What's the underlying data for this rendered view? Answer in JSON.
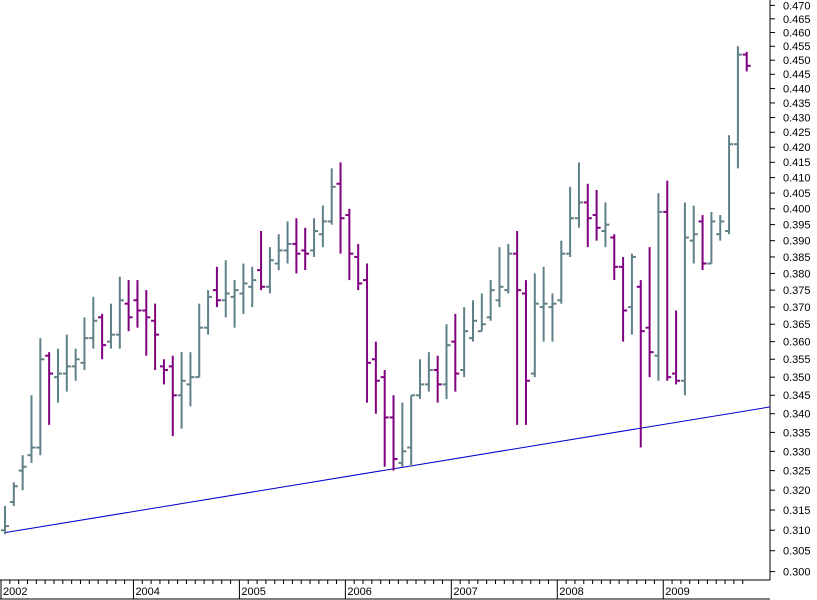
{
  "chart_data": {
    "type": "ohlc",
    "categories": [
      "2002",
      null,
      null,
      null,
      null,
      null,
      null,
      null,
      null,
      null,
      null,
      null,
      null,
      null,
      null,
      "2004",
      null,
      null,
      null,
      null,
      null,
      null,
      null,
      null,
      null,
      null,
      null,
      "2005",
      null,
      null,
      null,
      null,
      null,
      null,
      null,
      null,
      null,
      null,
      null,
      "2006",
      null,
      null,
      null,
      null,
      null,
      null,
      null,
      null,
      null,
      null,
      null,
      "2007",
      null,
      null,
      null,
      null,
      null,
      null,
      null,
      null,
      null,
      null,
      null,
      "2008",
      null,
      null,
      null,
      null,
      null,
      null,
      null,
      null,
      null,
      null,
      null,
      "2009",
      null,
      null,
      null,
      null,
      null,
      null,
      null,
      null,
      null
    ],
    "open": [
      0.31,
      0.317,
      0.325,
      0.329,
      0.331,
      0.356,
      0.35,
      0.351,
      0.353,
      0.354,
      0.361,
      0.367,
      0.36,
      0.362,
      0.371,
      0.372,
      0.369,
      0.366,
      0.353,
      0.353,
      0.345,
      0.348,
      0.35,
      0.364,
      0.375,
      0.372,
      0.373,
      0.374,
      0.376,
      0.381,
      0.376,
      0.383,
      0.387,
      0.389,
      0.387,
      0.387,
      0.392,
      0.396,
      0.408,
      0.398,
      0.385,
      0.378,
      0.355,
      0.35,
      0.339,
      0.327,
      0.331,
      0.345,
      0.348,
      0.352,
      0.348,
      0.36,
      0.352,
      0.361,
      0.363,
      0.367,
      0.372,
      0.375,
      0.386,
      0.374,
      0.351,
      0.37,
      0.37,
      0.372,
      0.386,
      0.397,
      0.402,
      0.398,
      0.393,
      0.391,
      0.382,
      0.37,
      0.376,
      0.364,
      0.356,
      0.399,
      0.351,
      0.349,
      0.39,
      0.396,
      0.383,
      0.392,
      0.393,
      0.421,
      0.452
    ],
    "high": [
      0.316,
      0.322,
      0.329,
      0.345,
      0.361,
      0.357,
      0.358,
      0.362,
      0.358,
      0.367,
      0.373,
      0.368,
      0.371,
      0.379,
      0.378,
      0.378,
      0.375,
      0.371,
      0.355,
      0.356,
      0.357,
      0.357,
      0.371,
      0.375,
      0.382,
      0.384,
      0.378,
      0.383,
      0.382,
      0.393,
      0.388,
      0.392,
      0.396,
      0.397,
      0.394,
      0.397,
      0.401,
      0.413,
      0.415,
      0.4,
      0.389,
      0.383,
      0.36,
      0.352,
      0.345,
      0.343,
      0.345,
      0.355,
      0.357,
      0.356,
      0.365,
      0.368,
      0.37,
      0.372,
      0.374,
      0.378,
      0.388,
      0.389,
      0.393,
      0.378,
      0.38,
      0.382,
      0.374,
      0.39,
      0.407,
      0.415,
      0.408,
      0.406,
      0.402,
      0.392,
      0.385,
      0.386,
      0.378,
      0.388,
      0.405,
      0.409,
      0.369,
      0.402,
      0.401,
      0.398,
      0.399,
      0.398,
      0.424,
      0.455,
      0.453
    ],
    "low": [
      0.309,
      0.316,
      0.32,
      0.327,
      0.329,
      0.337,
      0.343,
      0.346,
      0.349,
      0.352,
      0.358,
      0.355,
      0.358,
      0.358,
      0.363,
      0.364,
      0.356,
      0.352,
      0.348,
      0.334,
      0.336,
      0.342,
      0.35,
      0.362,
      0.37,
      0.367,
      0.364,
      0.368,
      0.37,
      0.375,
      0.374,
      0.381,
      0.383,
      0.38,
      0.381,
      0.385,
      0.388,
      0.395,
      0.386,
      0.378,
      0.375,
      0.343,
      0.34,
      0.326,
      0.325,
      0.326,
      0.326,
      0.344,
      0.346,
      0.343,
      0.344,
      0.346,
      0.35,
      0.36,
      0.363,
      0.366,
      0.37,
      0.374,
      0.337,
      0.337,
      0.35,
      0.36,
      0.36,
      0.371,
      0.385,
      0.394,
      0.388,
      0.39,
      0.388,
      0.378,
      0.36,
      0.362,
      0.331,
      0.35,
      0.349,
      0.349,
      0.348,
      0.345,
      0.383,
      0.381,
      0.383,
      0.39,
      0.392,
      0.413,
      0.446
    ],
    "close": [
      0.311,
      0.321,
      0.326,
      0.331,
      0.355,
      0.351,
      0.351,
      0.353,
      0.355,
      0.361,
      0.366,
      0.359,
      0.362,
      0.372,
      0.367,
      0.369,
      0.367,
      0.362,
      0.352,
      0.345,
      0.349,
      0.35,
      0.364,
      0.373,
      0.372,
      0.374,
      0.375,
      0.377,
      0.378,
      0.376,
      0.384,
      0.387,
      0.389,
      0.386,
      0.386,
      0.393,
      0.396,
      0.407,
      0.397,
      0.386,
      0.377,
      0.354,
      0.349,
      0.339,
      0.328,
      0.33,
      0.345,
      0.348,
      0.352,
      0.348,
      0.359,
      0.351,
      0.363,
      0.366,
      0.365,
      0.375,
      0.376,
      0.386,
      0.375,
      0.349,
      0.371,
      0.371,
      0.371,
      0.386,
      0.397,
      0.402,
      0.397,
      0.394,
      0.395,
      0.382,
      0.369,
      0.385,
      0.363,
      0.357,
      0.399,
      0.35,
      0.349,
      0.391,
      0.392,
      0.383,
      0.396,
      0.396,
      0.421,
      0.452,
      0.448
    ],
    "up_color": "#5f8088",
    "down_color": "#800080",
    "log_scale": true,
    "ylim": [
      0.298,
      0.472
    ],
    "yticks": [
      {
        "value": 0.3,
        "label": "0.300"
      },
      0.305,
      {
        "value": 0.31,
        "label": "0.310"
      },
      0.315,
      {
        "value": 0.32,
        "label": "0.320"
      },
      0.325,
      {
        "value": 0.33,
        "label": "0.330"
      },
      0.335,
      {
        "value": 0.34,
        "label": "0.340"
      },
      0.345,
      {
        "value": 0.35,
        "label": "0.350"
      },
      0.355,
      {
        "value": 0.36,
        "label": "0.360"
      },
      0.365,
      {
        "value": 0.37,
        "label": "0.370"
      },
      0.375,
      {
        "value": 0.38,
        "label": "0.380"
      },
      0.385,
      {
        "value": 0.39,
        "label": "0.390"
      },
      0.395,
      {
        "value": 0.4,
        "label": "0.400"
      },
      0.405,
      {
        "value": 0.41,
        "label": "0.410"
      },
      0.415,
      {
        "value": 0.42,
        "label": "0.420"
      },
      0.425,
      {
        "value": 0.43,
        "label": "0.430"
      },
      0.435,
      {
        "value": 0.44,
        "label": "0.440"
      },
      0.445,
      {
        "value": 0.45,
        "label": "0.450"
      },
      0.455,
      {
        "value": 0.46,
        "label": "0.460"
      },
      0.465,
      {
        "value": 0.47,
        "label": "0.470"
      }
    ],
    "trendline": {
      "color": "#0000cc",
      "x": [
        0,
        84
      ],
      "values": [
        0.3094,
        0.3408
      ]
    }
  }
}
